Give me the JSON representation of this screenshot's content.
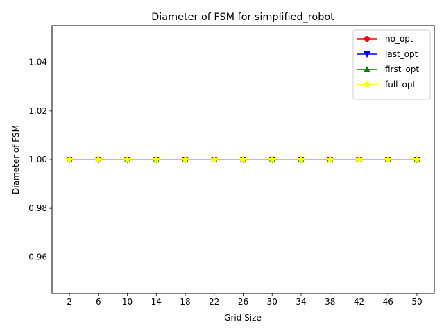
{
  "chart_data": {
    "type": "line",
    "title": "Diameter of FSM for simplified_robot",
    "xlabel": "Grid Size",
    "ylabel": "Diameter of FSM",
    "x": [
      2,
      6,
      10,
      14,
      18,
      22,
      26,
      30,
      34,
      38,
      42,
      46,
      50
    ],
    "xticks": [
      "2",
      "6",
      "10",
      "14",
      "18",
      "22",
      "26",
      "30",
      "34",
      "38",
      "42",
      "46",
      "50"
    ],
    "ylim": [
      0.945,
      1.055
    ],
    "yticks": [
      0.96,
      0.98,
      1.0,
      1.02,
      1.04
    ],
    "ytick_labels": [
      "0.96",
      "0.98",
      "1.00",
      "1.02",
      "1.04"
    ],
    "grid": false,
    "legend_position": "top-right",
    "series": [
      {
        "name": "no_opt",
        "color": "#ff0000",
        "marker": "circle",
        "values": [
          1,
          1,
          1,
          1,
          1,
          1,
          1,
          1,
          1,
          1,
          1,
          1,
          1
        ]
      },
      {
        "name": "last_opt",
        "color": "#0000ff",
        "marker": "triangle-down",
        "values": [
          1,
          1,
          1,
          1,
          1,
          1,
          1,
          1,
          1,
          1,
          1,
          1,
          1
        ]
      },
      {
        "name": "first_opt",
        "color": "#008000",
        "marker": "triangle-up",
        "values": [
          1,
          1,
          1,
          1,
          1,
          1,
          1,
          1,
          1,
          1,
          1,
          1,
          1
        ]
      },
      {
        "name": "full_opt",
        "color": "#ffff00",
        "marker": "star",
        "values": [
          1,
          1,
          1,
          1,
          1,
          1,
          1,
          1,
          1,
          1,
          1,
          1,
          1
        ]
      }
    ]
  }
}
